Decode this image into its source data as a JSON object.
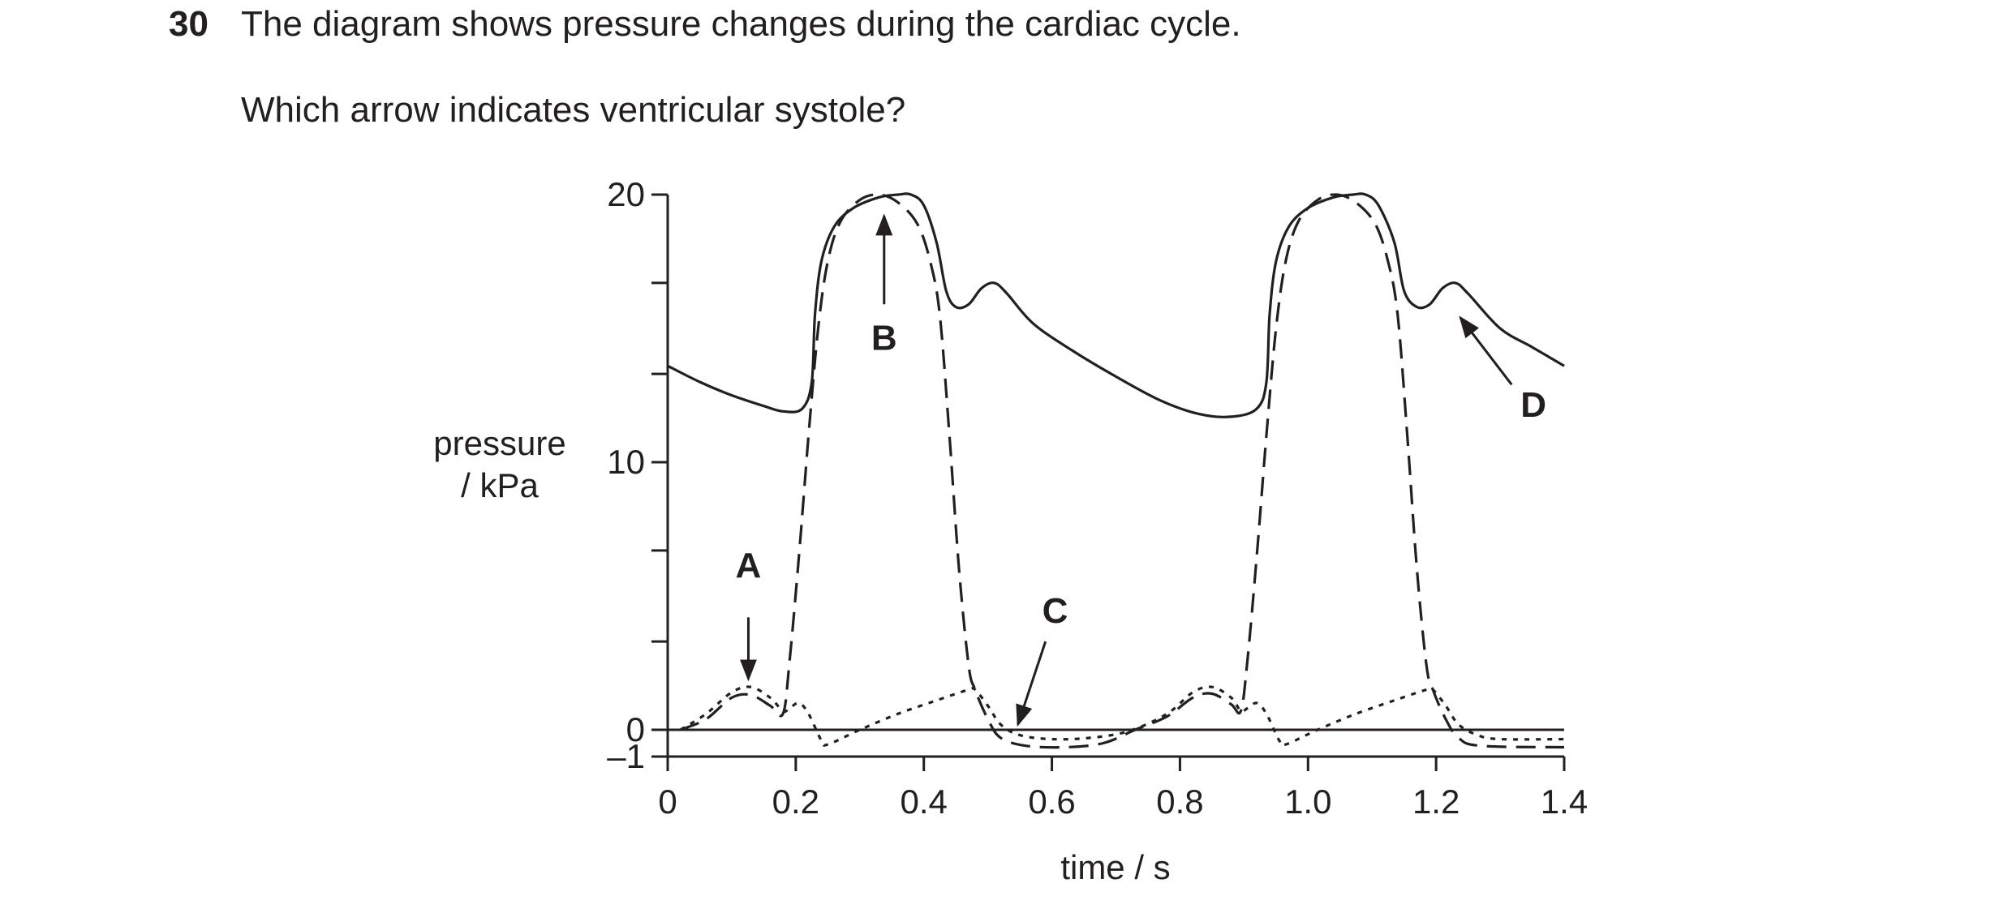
{
  "question": {
    "number": "30",
    "text": "The diagram shows pressure changes during the cardiac cycle.",
    "prompt": "Which arrow indicates ventricular systole?"
  },
  "chart_data": {
    "type": "line",
    "xlabel": "time / s",
    "ylabel_line1": "pressure",
    "ylabel_line2": "/ kPa",
    "xlim": [
      0,
      1.4
    ],
    "ylim": [
      -1,
      20
    ],
    "x_ticks": [
      0,
      0.2,
      0.4,
      0.6,
      0.8,
      1.0,
      1.2,
      1.4
    ],
    "x_tick_labels": [
      "0",
      "0.2",
      "0.4",
      "0.6",
      "0.8",
      "1.0",
      "1.2",
      "1.4"
    ],
    "y_ticks": [
      -1,
      0,
      3.3,
      6.7,
      10,
      13.3,
      16.7,
      20
    ],
    "y_tick_labels": [
      {
        "value": 20,
        "label": "20"
      },
      {
        "value": 10,
        "label": "10"
      },
      {
        "value": 0,
        "label": "0"
      },
      {
        "value": -1,
        "label": "–1"
      }
    ],
    "series": [
      {
        "style": "solid",
        "points": [
          [
            0,
            13.6
          ],
          [
            0.05,
            13.0
          ],
          [
            0.1,
            12.5
          ],
          [
            0.15,
            12.1
          ],
          [
            0.18,
            11.9
          ],
          [
            0.21,
            12.0
          ],
          [
            0.225,
            13.0
          ],
          [
            0.23,
            15.5
          ],
          [
            0.24,
            17.5
          ],
          [
            0.26,
            18.8
          ],
          [
            0.29,
            19.5
          ],
          [
            0.33,
            19.9
          ],
          [
            0.36,
            20.0
          ],
          [
            0.38,
            20.0
          ],
          [
            0.4,
            19.6
          ],
          [
            0.42,
            18.2
          ],
          [
            0.435,
            16.4
          ],
          [
            0.45,
            15.8
          ],
          [
            0.47,
            15.9
          ],
          [
            0.49,
            16.5
          ],
          [
            0.51,
            16.7
          ],
          [
            0.53,
            16.3
          ],
          [
            0.57,
            15.2
          ],
          [
            0.63,
            14.2
          ],
          [
            0.7,
            13.2
          ],
          [
            0.77,
            12.3
          ],
          [
            0.83,
            11.8
          ],
          [
            0.88,
            11.7
          ],
          [
            0.92,
            12.0
          ],
          [
            0.935,
            13.0
          ],
          [
            0.94,
            15.5
          ],
          [
            0.95,
            17.5
          ],
          [
            0.97,
            18.8
          ],
          [
            1.0,
            19.5
          ],
          [
            1.04,
            19.9
          ],
          [
            1.07,
            20.0
          ],
          [
            1.09,
            20.0
          ],
          [
            1.11,
            19.6
          ],
          [
            1.135,
            18.2
          ],
          [
            1.15,
            16.4
          ],
          [
            1.17,
            15.8
          ],
          [
            1.19,
            15.9
          ],
          [
            1.21,
            16.5
          ],
          [
            1.23,
            16.7
          ],
          [
            1.25,
            16.3
          ],
          [
            1.3,
            15.0
          ],
          [
            1.35,
            14.3
          ],
          [
            1.4,
            13.6
          ]
        ]
      },
      {
        "style": "dashed",
        "points": [
          [
            0.02,
            0.0
          ],
          [
            0.06,
            0.4
          ],
          [
            0.1,
            1.2
          ],
          [
            0.13,
            1.3
          ],
          [
            0.16,
            0.9
          ],
          [
            0.18,
            0.6
          ],
          [
            0.19,
            2.5
          ],
          [
            0.205,
            6.5
          ],
          [
            0.22,
            11.0
          ],
          [
            0.235,
            15.0
          ],
          [
            0.25,
            17.5
          ],
          [
            0.27,
            19.0
          ],
          [
            0.3,
            19.8
          ],
          [
            0.33,
            20.0
          ],
          [
            0.36,
            19.7
          ],
          [
            0.39,
            18.9
          ],
          [
            0.41,
            17.5
          ],
          [
            0.425,
            15.5
          ],
          [
            0.44,
            11.0
          ],
          [
            0.455,
            6.0
          ],
          [
            0.47,
            2.4
          ],
          [
            0.48,
            1.5
          ],
          [
            0.5,
            0.4
          ],
          [
            0.52,
            -0.3
          ],
          [
            0.56,
            -0.6
          ],
          [
            0.62,
            -0.65
          ],
          [
            0.68,
            -0.5
          ],
          [
            0.73,
            0.0
          ],
          [
            0.78,
            0.5
          ],
          [
            0.82,
            1.2
          ],
          [
            0.85,
            1.35
          ],
          [
            0.88,
            0.95
          ],
          [
            0.895,
            0.7
          ],
          [
            0.905,
            2.5
          ],
          [
            0.92,
            6.5
          ],
          [
            0.935,
            11.0
          ],
          [
            0.95,
            15.0
          ],
          [
            0.965,
            17.5
          ],
          [
            0.985,
            19.0
          ],
          [
            1.015,
            19.8
          ],
          [
            1.045,
            20.0
          ],
          [
            1.075,
            19.7
          ],
          [
            1.105,
            18.9
          ],
          [
            1.125,
            17.5
          ],
          [
            1.14,
            15.5
          ],
          [
            1.155,
            11.0
          ],
          [
            1.17,
            6.0
          ],
          [
            1.185,
            2.4
          ],
          [
            1.195,
            1.5
          ],
          [
            1.215,
            0.4
          ],
          [
            1.235,
            -0.3
          ],
          [
            1.27,
            -0.6
          ],
          [
            1.4,
            -0.65
          ]
        ]
      },
      {
        "style": "dotted",
        "points": [
          [
            0.02,
            0.0
          ],
          [
            0.06,
            0.6
          ],
          [
            0.1,
            1.4
          ],
          [
            0.13,
            1.6
          ],
          [
            0.16,
            1.2
          ],
          [
            0.18,
            0.7
          ],
          [
            0.19,
            0.8
          ],
          [
            0.205,
            1.0
          ],
          [
            0.22,
            0.6
          ],
          [
            0.24,
            -0.4
          ],
          [
            0.25,
            -0.55
          ],
          [
            0.3,
            0.0
          ],
          [
            0.36,
            0.6
          ],
          [
            0.42,
            1.1
          ],
          [
            0.47,
            1.5
          ],
          [
            0.48,
            1.5
          ],
          [
            0.5,
            0.9
          ],
          [
            0.52,
            0.2
          ],
          [
            0.55,
            -0.2
          ],
          [
            0.6,
            -0.35
          ],
          [
            0.66,
            -0.3
          ],
          [
            0.72,
            -0.05
          ],
          [
            0.78,
            0.6
          ],
          [
            0.82,
            1.4
          ],
          [
            0.85,
            1.6
          ],
          [
            0.88,
            1.2
          ],
          [
            0.895,
            0.7
          ],
          [
            0.905,
            0.8
          ],
          [
            0.92,
            1.0
          ],
          [
            0.935,
            0.6
          ],
          [
            0.955,
            -0.4
          ],
          [
            0.965,
            -0.55
          ],
          [
            1.015,
            0.0
          ],
          [
            1.075,
            0.6
          ],
          [
            1.135,
            1.1
          ],
          [
            1.185,
            1.5
          ],
          [
            1.195,
            1.5
          ],
          [
            1.215,
            0.9
          ],
          [
            1.235,
            0.2
          ],
          [
            1.265,
            -0.2
          ],
          [
            1.3,
            -0.35
          ],
          [
            1.4,
            -0.35
          ]
        ]
      }
    ],
    "annotations": [
      {
        "label": "A",
        "from": [
          0.126,
          4.2
        ],
        "to": [
          0.126,
          1.9
        ],
        "label_at": [
          0.126,
          5.7
        ]
      },
      {
        "label": "B",
        "from": [
          0.338,
          15.9
        ],
        "to": [
          0.338,
          19.2
        ],
        "label_at": [
          0.338,
          14.2
        ]
      },
      {
        "label": "C",
        "from": [
          0.59,
          3.3
        ],
        "to": [
          0.547,
          0.2
        ],
        "label_at": [
          0.605,
          4.0
        ]
      },
      {
        "label": "D",
        "from": [
          1.318,
          12.9
        ],
        "to": [
          1.238,
          15.4
        ],
        "label_at": [
          1.352,
          11.7
        ]
      }
    ]
  }
}
